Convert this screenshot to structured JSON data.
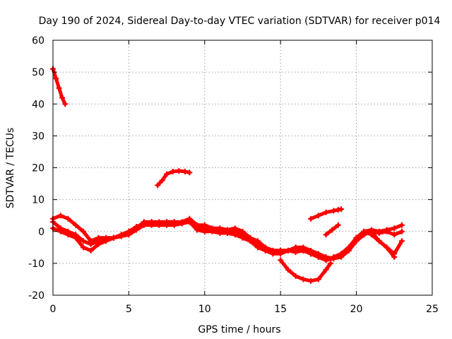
{
  "chart_data": {
    "type": "scatter",
    "title": "Day 190 of 2024, Sidereal Day-to-day VTEC variation (SDTVAR) for receiver p014",
    "xlabel": "GPS time / hours",
    "ylabel": "SDTVAR / TECUs",
    "xlim": [
      0,
      25
    ],
    "ylim": [
      -20,
      60
    ],
    "xticks": [
      0,
      5,
      10,
      15,
      20,
      25
    ],
    "yticks": [
      -20,
      -10,
      0,
      10,
      20,
      30,
      40,
      50,
      60
    ],
    "grid": true,
    "color": "#ff0000",
    "series": [
      {
        "name": "segment-1",
        "x": [
          0.0,
          0.2,
          0.4,
          0.6,
          0.8
        ],
        "y": [
          51,
          48,
          45,
          42,
          40
        ]
      },
      {
        "name": "segment-2",
        "x": [
          6.9,
          7.2,
          7.5,
          7.9,
          8.3,
          8.7,
          9.0
        ],
        "y": [
          14.5,
          16,
          18,
          18.8,
          19,
          18.8,
          18.5
        ]
      },
      {
        "name": "segment-3",
        "x": [
          17.0,
          17.5,
          18.0,
          18.5,
          18.8,
          19.0
        ],
        "y": [
          4,
          5,
          6,
          6.5,
          6.8,
          7
        ]
      },
      {
        "name": "segment-4",
        "x": [
          18.0,
          18.4,
          18.8
        ],
        "y": [
          -1,
          0.5,
          2
        ]
      },
      {
        "name": "segment-5",
        "x": [
          0.0,
          0.5,
          1.0,
          1.5,
          2.0,
          2.5,
          3.0,
          3.5,
          4.0,
          4.5,
          5.0,
          5.5,
          6.0,
          6.5,
          7.0,
          7.5,
          8.0,
          8.5,
          9.0,
          9.5,
          10.0,
          10.5,
          11.0,
          11.5,
          12.0,
          12.5,
          13.0,
          13.5,
          14.0,
          14.5,
          15.0,
          15.5,
          16.0,
          16.5,
          17.0,
          17.5,
          18.0,
          18.5,
          19.0,
          19.5,
          20.0,
          20.5,
          21.0,
          21.5,
          22.0,
          22.5,
          23.0
        ],
        "y": [
          4,
          5,
          4,
          2,
          0,
          -3,
          -2,
          -2,
          -2,
          -1.5,
          0,
          1,
          3,
          3,
          3,
          3,
          3,
          3,
          4,
          2,
          2,
          1,
          1,
          0.5,
          1,
          0,
          -2,
          -3,
          -5,
          -6,
          -6,
          -6,
          -5,
          -5,
          -6,
          -7,
          -8,
          -8.5,
          -7,
          -5,
          -2,
          0,
          0.5,
          0,
          0.5,
          1,
          2
        ]
      },
      {
        "name": "segment-6",
        "x": [
          0.0,
          0.5,
          1.0,
          1.5,
          2.0,
          2.5,
          3.0,
          3.5,
          4.0,
          4.5,
          5.0,
          5.5,
          6.0,
          6.5,
          7.0,
          7.5,
          8.0,
          8.5,
          9.0,
          9.5,
          10.0,
          10.5,
          11.0,
          11.5,
          12.0,
          12.5,
          13.0,
          13.5,
          14.0,
          14.5,
          15.0,
          15.5,
          16.0,
          16.5,
          17.0,
          17.5,
          18.0,
          18.5,
          19.0,
          19.5,
          20.0,
          20.5,
          21.0,
          21.5,
          22.0,
          22.5,
          23.0
        ],
        "y": [
          3,
          1,
          0,
          -1,
          -3,
          -4,
          -3,
          -2.5,
          -2,
          -1,
          0,
          1.5,
          2.5,
          3,
          2.5,
          3,
          3,
          2.5,
          3,
          1,
          1,
          0.5,
          0,
          0,
          0,
          -1,
          -2,
          -4,
          -5,
          -6,
          -6,
          -6,
          -6.5,
          -6,
          -7,
          -8,
          -9,
          -8.5,
          -8,
          -6,
          -3,
          -1,
          0,
          -0.5,
          0,
          -1,
          0
        ]
      },
      {
        "name": "segment-7",
        "x": [
          0.0,
          0.5,
          1.0,
          1.5,
          2.0,
          2.5,
          3.0,
          3.5,
          4.0,
          4.5,
          5.0,
          5.5,
          6.0,
          6.5,
          7.0,
          7.5,
          8.0,
          8.5,
          9.0,
          9.5,
          10.0,
          10.5,
          11.0,
          11.5,
          12.0,
          12.5,
          13.0,
          13.5,
          14.0,
          14.5,
          15.0,
          15.5,
          16.0,
          16.5,
          17.0,
          17.5,
          18.0,
          18.5,
          19.0,
          19.5,
          20.0,
          20.5,
          21.0,
          21.5,
          22.0,
          22.5,
          23.0
        ],
        "y": [
          1,
          0,
          -1,
          -2,
          -5,
          -6,
          -4,
          -3,
          -2,
          -1.5,
          -1,
          0.5,
          2,
          2,
          2,
          2,
          2,
          2.5,
          3,
          0.5,
          0,
          0,
          -0.5,
          -0.5,
          -1,
          -2,
          -3,
          -5,
          -6,
          -7,
          -7,
          -6,
          -5,
          -6,
          -7,
          -8,
          -9,
          -8,
          -7,
          -5,
          -2,
          0,
          -1,
          -3,
          -5,
          -7,
          -3
        ]
      },
      {
        "name": "segment-8",
        "x": [
          15.0,
          15.5,
          16.0,
          16.5,
          17.0,
          17.5,
          18.0,
          18.3
        ],
        "y": [
          -9,
          -12,
          -14,
          -15,
          -15.5,
          -15,
          -12,
          -10
        ]
      },
      {
        "name": "segment-9",
        "x": [
          20.0,
          20.5,
          21.0,
          21.5,
          22.0,
          22.5
        ],
        "y": [
          -2,
          -1,
          0,
          -3,
          -5,
          -8
        ]
      }
    ]
  }
}
